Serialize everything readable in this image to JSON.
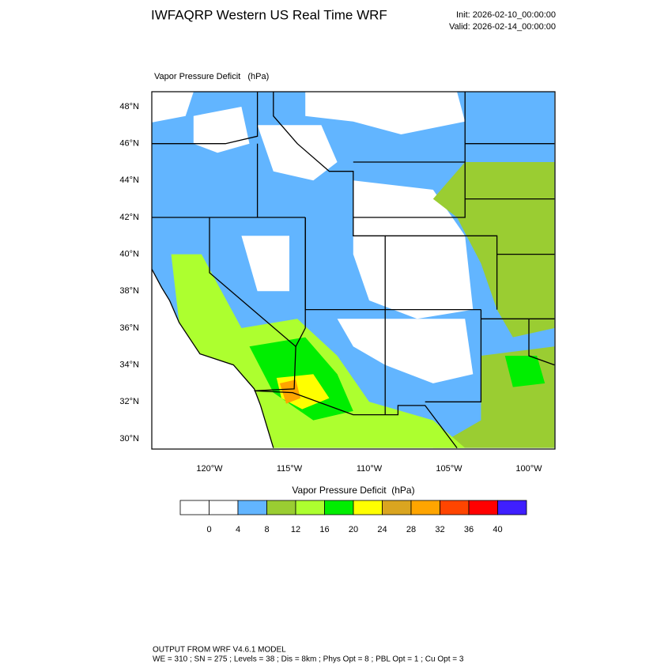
{
  "header": {
    "title": "IWFAQRP Western US Real Time WRF",
    "init": "Init: 2026-02-10_00:00:00",
    "valid": "Valid: 2026-02-14_00:00:00"
  },
  "map": {
    "title": "Vapor Pressure Deficit   (hPa)",
    "lat_labels": [
      "48°N",
      "46°N",
      "44°N",
      "42°N",
      "40°N",
      "38°N",
      "36°N",
      "34°N",
      "32°N",
      "30°N"
    ],
    "lon_labels": [
      "120°W",
      "115°W",
      "110°W",
      "105°W",
      "100°W"
    ]
  },
  "colorbar": {
    "title": "Vapor Pressure Deficit  (hPa)",
    "colors": [
      "#ffffff",
      "#ffffff",
      "#62b5ff",
      "#9acd32",
      "#adff2f",
      "#00ee00",
      "#ffff00",
      "#daa520",
      "#ffa500",
      "#ff4500",
      "#ff0000",
      "#3f1fff"
    ],
    "labels": [
      0,
      4,
      8,
      12,
      16,
      20,
      24,
      28,
      32,
      36,
      40
    ]
  },
  "footer": {
    "line1": "OUTPUT FROM WRF V4.6.1 MODEL",
    "line2": "WE = 310 ; SN = 275 ; Levels = 38 ; Dis = 8km ; Phys Opt = 8 ; PBL Opt = 1 ; Cu Opt = 3"
  }
}
